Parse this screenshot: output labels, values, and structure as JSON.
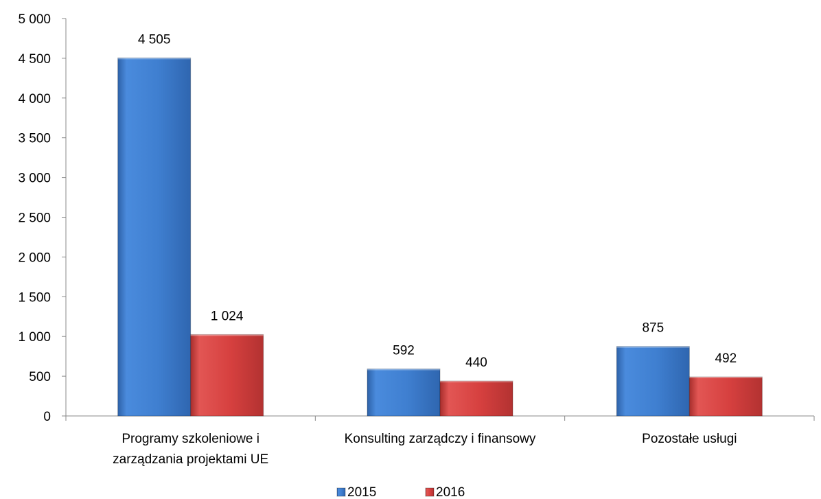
{
  "chart_data": {
    "type": "bar",
    "categories": [
      [
        "Programy szkoleniowe i",
        "zarządzania projektami UE"
      ],
      [
        "Konsulting zarządczy i finansowy"
      ],
      [
        "Pozostałe usługi"
      ]
    ],
    "series": [
      {
        "name": "2015",
        "values": [
          4505,
          592,
          875
        ],
        "value_labels": [
          "4 505",
          "592",
          "875"
        ],
        "color": "#3F7FD0"
      },
      {
        "name": "2016",
        "values": [
          1024,
          440,
          492
        ],
        "value_labels": [
          "1 024",
          "440",
          "492"
        ],
        "color": "#D6403F"
      }
    ],
    "ylim": [
      0,
      5000
    ],
    "yticks": [
      0,
      500,
      1000,
      1500,
      2000,
      2500,
      3000,
      3500,
      4000,
      4500,
      5000
    ],
    "ytick_labels": [
      "0",
      "500",
      "1 000",
      "1 500",
      "2 000",
      "2 500",
      "3 000",
      "3 500",
      "4 000",
      "4 500",
      "5 000"
    ],
    "grid": false,
    "legend_position": "bottom",
    "axis_color": "#898989"
  }
}
